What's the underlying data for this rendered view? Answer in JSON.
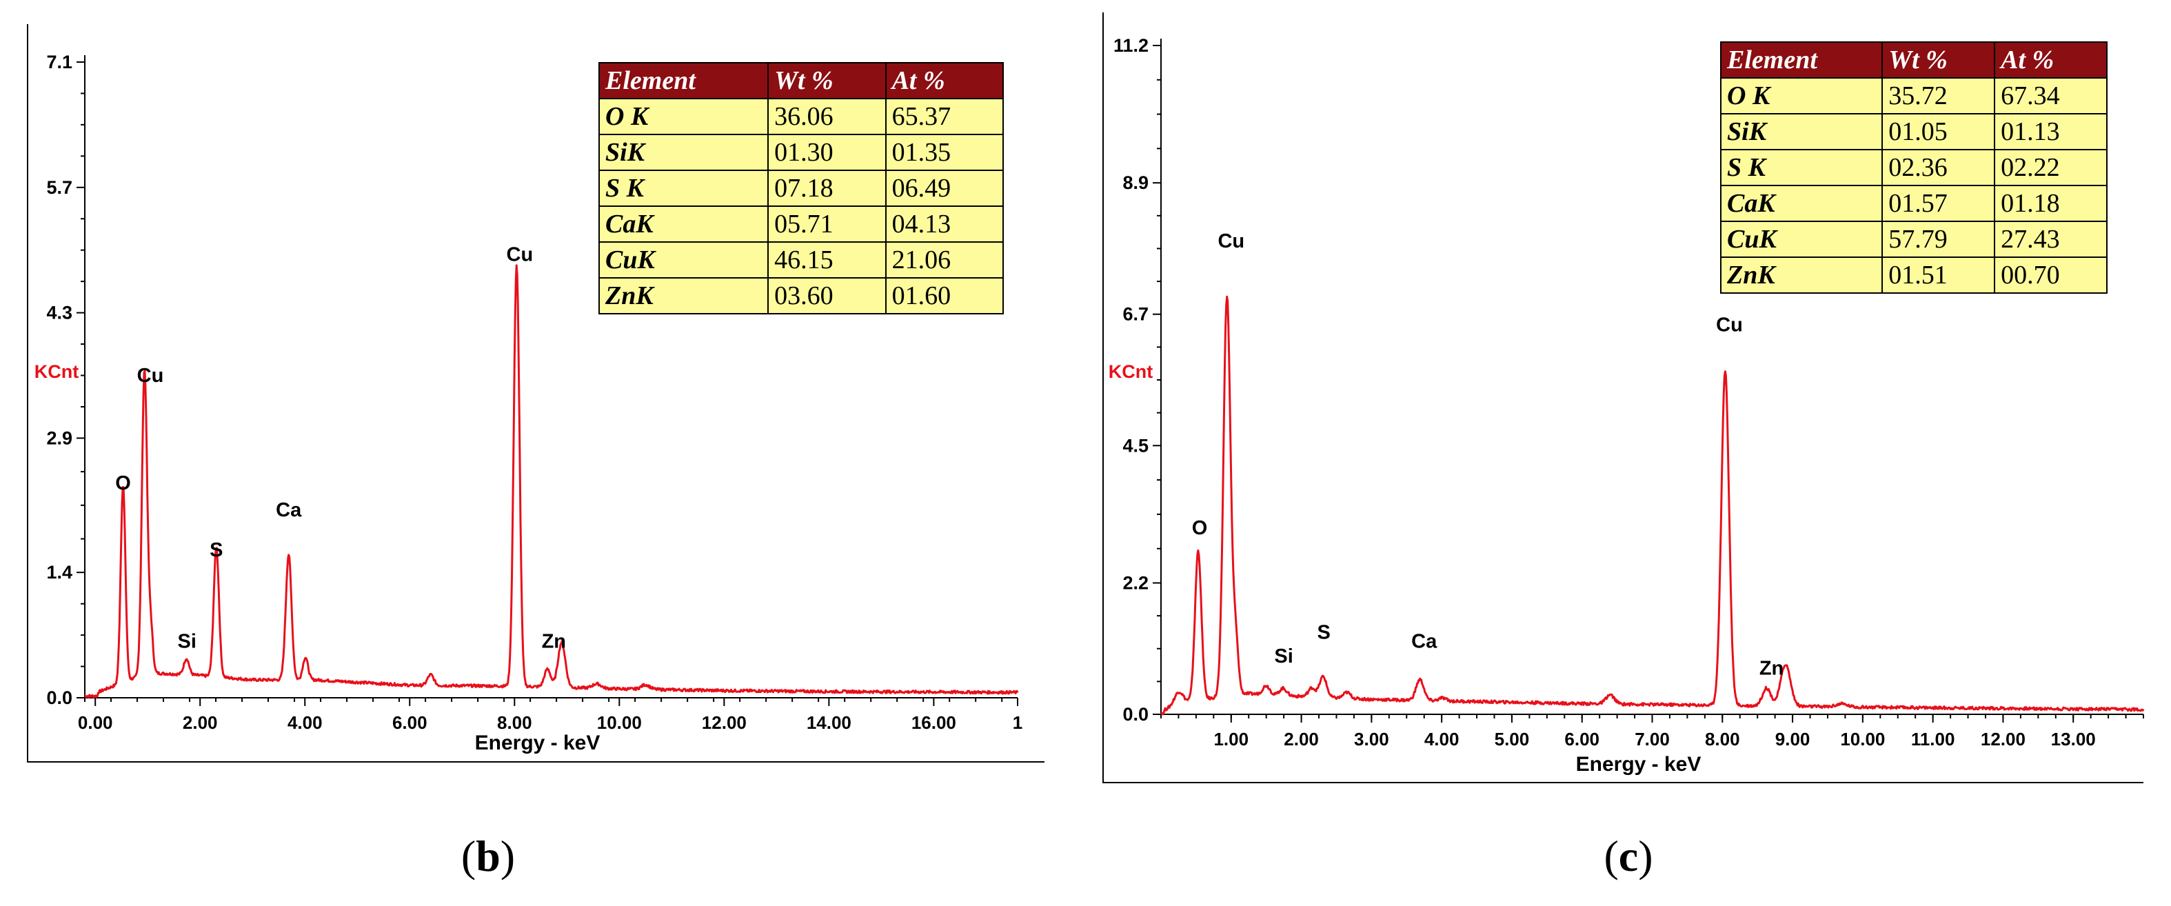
{
  "chart_data": [
    {
      "type": "line",
      "caption_open": "(",
      "caption_letter": "b",
      "caption_close": ")",
      "xlabel": "Energy - keV",
      "ylabel": "KCnt",
      "xlim": [
        -0.2,
        17.6
      ],
      "ylim": [
        0,
        7.1
      ],
      "yticks": [
        "0.0",
        "1.4",
        "2.9",
        "4.3",
        "5.7",
        "7.1"
      ],
      "ytick_values": [
        0,
        1.4,
        2.9,
        4.3,
        5.7,
        7.1
      ],
      "xticks": [
        "0.00",
        "2.00",
        "4.00",
        "6.00",
        "8.00",
        "10.00",
        "12.00",
        "14.00",
        "16.00",
        "1"
      ],
      "xtick_values": [
        0,
        2,
        4,
        6,
        8,
        10,
        12,
        14,
        16,
        17.6
      ],
      "baseline": 0.07,
      "background": [
        [
          0,
          0.05
        ],
        [
          0.3,
          0.12
        ],
        [
          1.0,
          0.28
        ],
        [
          2.0,
          0.25
        ],
        [
          3.0,
          0.2
        ],
        [
          4.2,
          0.2
        ],
        [
          6.0,
          0.14
        ],
        [
          8.0,
          0.13
        ],
        [
          10.0,
          0.1
        ],
        [
          12.0,
          0.08
        ],
        [
          14.0,
          0.07
        ],
        [
          17.6,
          0.06
        ]
      ],
      "peaks": [
        {
          "x": 0.53,
          "y": 2.2,
          "w": 0.045
        },
        {
          "x": 0.94,
          "y": 3.4,
          "w": 0.05
        },
        {
          "x": 1.06,
          "y": 0.5,
          "w": 0.04
        },
        {
          "x": 1.74,
          "y": 0.18,
          "w": 0.05
        },
        {
          "x": 2.31,
          "y": 1.45,
          "w": 0.05
        },
        {
          "x": 3.69,
          "y": 1.4,
          "w": 0.055
        },
        {
          "x": 4.01,
          "y": 0.25,
          "w": 0.05
        },
        {
          "x": 6.4,
          "y": 0.12,
          "w": 0.06
        },
        {
          "x": 8.04,
          "y": 4.7,
          "w": 0.055
        },
        {
          "x": 8.63,
          "y": 0.2,
          "w": 0.06
        },
        {
          "x": 8.9,
          "y": 0.5,
          "w": 0.07
        },
        {
          "x": 9.57,
          "y": 0.05,
          "w": 0.08
        },
        {
          "x": 10.5,
          "y": 0.05,
          "w": 0.08
        }
      ],
      "peak_labels": [
        {
          "text": "O",
          "x": 0.53,
          "y": 2.25
        },
        {
          "text": "Cu",
          "x": 1.05,
          "y": 3.45
        },
        {
          "text": "Si",
          "x": 1.75,
          "y": 0.48
        },
        {
          "text": "S",
          "x": 2.31,
          "y": 1.5
        },
        {
          "text": "Ca",
          "x": 3.69,
          "y": 1.95
        },
        {
          "text": "Cu",
          "x": 8.1,
          "y": 4.8
        },
        {
          "text": "Zn",
          "x": 8.75,
          "y": 0.48
        }
      ],
      "table": {
        "headers": [
          "Element",
          "Wt %",
          "At %"
        ],
        "rows": [
          [
            "O K",
            "36.06",
            "65.37"
          ],
          [
            "SiK",
            "01.30",
            "01.35"
          ],
          [
            "S K",
            "07.18",
            "06.49"
          ],
          [
            "CaK",
            "05.71",
            "04.13"
          ],
          [
            "CuK",
            "46.15",
            "21.06"
          ],
          [
            "ZnK",
            "03.60",
            "01.60"
          ]
        ]
      },
      "colors": {
        "spectrum": "#e8101a",
        "table_header": "#8b0e12",
        "table_cell": "#fdfb9c"
      }
    },
    {
      "type": "line",
      "caption_open": "(",
      "caption_letter": "c",
      "caption_close": ")",
      "xlabel": "Energy - keV",
      "ylabel": "KCnt",
      "xlim": [
        0,
        14.0
      ],
      "ylim": [
        0,
        11.2
      ],
      "yticks": [
        "0.0",
        "2.2",
        "4.5",
        "6.7",
        "8.9",
        "11.2"
      ],
      "ytick_values": [
        0,
        2.2,
        4.5,
        6.7,
        8.9,
        11.2
      ],
      "xticks": [
        "1.00",
        "2.00",
        "3.00",
        "4.00",
        "5.00",
        "6.00",
        "7.00",
        "8.00",
        "9.00",
        "10.00",
        "11.00",
        "12.00",
        "13.00"
      ],
      "xtick_values": [
        1,
        2,
        3,
        4,
        5,
        6,
        7,
        8,
        9,
        10,
        11,
        12,
        13
      ],
      "baseline": 0.07,
      "background": [
        [
          0,
          0.05
        ],
        [
          0.3,
          0.2
        ],
        [
          1.2,
          0.35
        ],
        [
          2.0,
          0.3
        ],
        [
          3.0,
          0.25
        ],
        [
          4.2,
          0.22
        ],
        [
          6.0,
          0.18
        ],
        [
          8.0,
          0.15
        ],
        [
          10.0,
          0.12
        ],
        [
          12.0,
          0.1
        ],
        [
          14.0,
          0.08
        ]
      ],
      "peaks": [
        {
          "x": 0.25,
          "y": 0.2,
          "w": 0.06
        },
        {
          "x": 0.53,
          "y": 2.5,
          "w": 0.045
        },
        {
          "x": 0.94,
          "y": 6.7,
          "w": 0.05
        },
        {
          "x": 1.06,
          "y": 1.0,
          "w": 0.04
        },
        {
          "x": 1.5,
          "y": 0.15,
          "w": 0.05
        },
        {
          "x": 1.74,
          "y": 0.12,
          "w": 0.05
        },
        {
          "x": 2.15,
          "y": 0.15,
          "w": 0.05
        },
        {
          "x": 2.31,
          "y": 0.35,
          "w": 0.05
        },
        {
          "x": 2.65,
          "y": 0.1,
          "w": 0.05
        },
        {
          "x": 3.69,
          "y": 0.35,
          "w": 0.055
        },
        {
          "x": 4.01,
          "y": 0.05,
          "w": 0.05
        },
        {
          "x": 6.4,
          "y": 0.15,
          "w": 0.06
        },
        {
          "x": 8.04,
          "y": 5.6,
          "w": 0.055
        },
        {
          "x": 8.63,
          "y": 0.3,
          "w": 0.06
        },
        {
          "x": 8.9,
          "y": 0.7,
          "w": 0.07
        },
        {
          "x": 9.7,
          "y": 0.05,
          "w": 0.08
        }
      ],
      "peak_labels": [
        {
          "text": "O",
          "x": 0.55,
          "y": 2.9
        },
        {
          "text": "Cu",
          "x": 1.0,
          "y": 7.7
        },
        {
          "text": "Si",
          "x": 1.75,
          "y": 0.75
        },
        {
          "text": "S",
          "x": 2.32,
          "y": 1.15
        },
        {
          "text": "Ca",
          "x": 3.75,
          "y": 1.0
        },
        {
          "text": "Cu",
          "x": 8.1,
          "y": 6.3
        },
        {
          "text": "Zn",
          "x": 8.7,
          "y": 0.55
        }
      ],
      "table": {
        "headers": [
          "Element",
          "Wt %",
          "At %"
        ],
        "rows": [
          [
            "O K",
            "35.72",
            "67.34"
          ],
          [
            "SiK",
            "01.05",
            "01.13"
          ],
          [
            "S K",
            "02.36",
            "02.22"
          ],
          [
            "CaK",
            "01.57",
            "01.18"
          ],
          [
            "CuK",
            "57.79",
            "27.43"
          ],
          [
            "ZnK",
            "01.51",
            "00.70"
          ]
        ]
      },
      "colors": {
        "spectrum": "#e8101a",
        "table_header": "#8b0e12",
        "table_cell": "#fdfb9c"
      }
    }
  ]
}
